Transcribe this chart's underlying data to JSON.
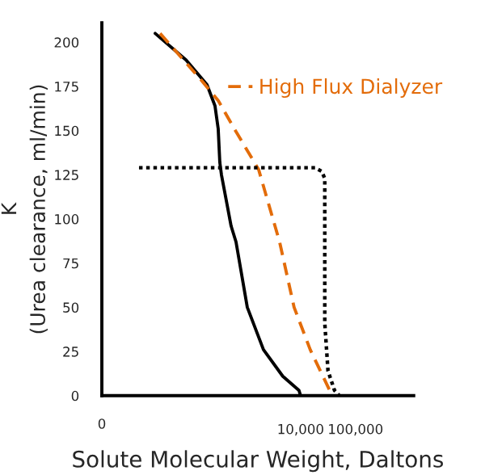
{
  "chart_data": {
    "type": "line",
    "xlabel": "Solute Molecular Weight, Daltons",
    "ylabel": "K\n(Urea clearance, ml/min)",
    "log": "x",
    "xlim": [
      2.4,
      1150000
    ],
    "annotations": [
      "0"
    ],
    "xticks": [
      {
        "value": 10000,
        "label": "10,000"
      },
      {
        "value": 100000,
        "label": "100,000"
      }
    ],
    "ylim": [
      0,
      211
    ],
    "yticks": [
      0,
      25,
      50,
      75,
      100,
      125,
      150,
      175,
      200
    ],
    "grid": false,
    "legend": "top right",
    "series": [
      {
        "color": "#000000",
        "line_style": "solid",
        "x": [
          22.5,
          82,
          197,
          276,
          316,
          338,
          362,
          543,
          667,
          1070,
          2110,
          4740,
          9350,
          10000
        ],
        "values": [
          205,
          190,
          176,
          164,
          151,
          132,
          125,
          96,
          87,
          50,
          26,
          11,
          3,
          0
        ]
      },
      {
        "name": "High Flux Dialyzer",
        "color": "#e36c0a",
        "line_style": "dashed",
        "x": [
          27.6,
          161,
          316,
          622,
          1720,
          4150,
          7620,
          15000,
          31600,
          36200
        ],
        "values": [
          205,
          178,
          167,
          151,
          128,
          87,
          50,
          26,
          5,
          1
        ]
      },
      {
        "color": "#000000",
        "line_style": "dotted",
        "x": [
          11.4,
          18400,
          24100,
          27600,
          27600,
          31600,
          41500,
          50800
        ],
        "values": [
          129,
          129,
          127,
          123,
          41,
          14,
          3,
          0
        ]
      }
    ]
  }
}
